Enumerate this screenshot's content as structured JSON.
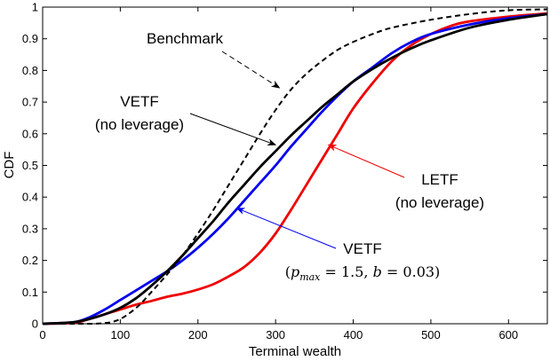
{
  "chart_data": {
    "type": "line",
    "title": "",
    "xlabel": "Terminal wealth",
    "ylabel": "CDF",
    "xlim": [
      0,
      650
    ],
    "ylim": [
      0,
      1
    ],
    "xticks": [
      0,
      100,
      200,
      300,
      400,
      500,
      600
    ],
    "yticks": [
      0,
      0.1,
      0.2,
      0.3,
      0.4,
      0.5,
      0.6,
      0.7,
      0.8,
      0.9,
      1
    ],
    "xtick_labels": [
      "0",
      "100",
      "200",
      "300",
      "400",
      "500",
      "600"
    ],
    "ytick_labels": [
      "0",
      "0.1",
      "0.2",
      "0.3",
      "0.4",
      "0.5",
      "0.6",
      "0.7",
      "0.8",
      "0.9",
      "1"
    ],
    "grid": false,
    "series": [
      {
        "name": "Benchmark",
        "color": "#000000",
        "dash": "dashed",
        "x": [
          0,
          60,
          80,
          90,
          100,
          110,
          125,
          140,
          160,
          180,
          200,
          220,
          240,
          260,
          280,
          300,
          320,
          340,
          360,
          380,
          400,
          425,
          450,
          500,
          550,
          600,
          650
        ],
        "y": [
          0,
          0,
          0.002,
          0.006,
          0.015,
          0.03,
          0.06,
          0.1,
          0.155,
          0.215,
          0.285,
          0.36,
          0.44,
          0.52,
          0.6,
          0.675,
          0.74,
          0.79,
          0.83,
          0.865,
          0.89,
          0.915,
          0.935,
          0.96,
          0.978,
          0.99,
          0.993
        ]
      },
      {
        "name": "VETF (no leverage)",
        "color": "#000000",
        "dash": "solid",
        "x": [
          0,
          40,
          60,
          80,
          100,
          120,
          140,
          160,
          180,
          200,
          220,
          240,
          260,
          280,
          300,
          320,
          340,
          360,
          380,
          400,
          425,
          450,
          475,
          500,
          550,
          600,
          650
        ],
        "y": [
          0,
          0.005,
          0.015,
          0.03,
          0.05,
          0.08,
          0.12,
          0.165,
          0.215,
          0.27,
          0.325,
          0.385,
          0.44,
          0.495,
          0.545,
          0.595,
          0.64,
          0.685,
          0.725,
          0.765,
          0.805,
          0.84,
          0.87,
          0.895,
          0.935,
          0.96,
          0.978
        ]
      },
      {
        "name": "VETF (p_max = 1.5, b = 0.03)",
        "color": "#0000ee",
        "dash": "solid",
        "x": [
          0,
          40,
          60,
          80,
          100,
          120,
          140,
          160,
          180,
          200,
          220,
          240,
          260,
          280,
          300,
          320,
          340,
          360,
          380,
          400,
          425,
          450,
          475,
          500,
          550,
          600,
          650
        ],
        "y": [
          0,
          0.005,
          0.02,
          0.045,
          0.075,
          0.105,
          0.135,
          0.165,
          0.2,
          0.24,
          0.285,
          0.335,
          0.39,
          0.445,
          0.5,
          0.56,
          0.615,
          0.67,
          0.72,
          0.765,
          0.81,
          0.855,
          0.89,
          0.915,
          0.945,
          0.965,
          0.978
        ]
      },
      {
        "name": "LETF (no leverage)",
        "color": "#ee0000",
        "dash": "solid",
        "x": [
          0,
          40,
          60,
          80,
          100,
          120,
          140,
          160,
          180,
          200,
          220,
          240,
          260,
          280,
          300,
          320,
          340,
          360,
          380,
          400,
          425,
          450,
          475,
          500,
          525,
          550,
          600,
          650
        ],
        "y": [
          0,
          0.003,
          0.015,
          0.03,
          0.045,
          0.06,
          0.072,
          0.085,
          0.095,
          0.108,
          0.125,
          0.15,
          0.18,
          0.225,
          0.285,
          0.36,
          0.44,
          0.52,
          0.6,
          0.68,
          0.76,
          0.83,
          0.88,
          0.915,
          0.94,
          0.955,
          0.97,
          0.98
        ]
      }
    ],
    "annotations": [
      {
        "id": "benchmark",
        "text": "Benchmark",
        "color": "#000000",
        "arrow_style": "dashed",
        "points_to": [
          305,
          0.745
        ]
      },
      {
        "id": "vetf",
        "lines": [
          "VETF",
          "(no leverage)"
        ],
        "color": "#000000",
        "arrow_style": "solid",
        "points_to": [
          300,
          0.565
        ]
      },
      {
        "id": "letf",
        "lines": [
          "LETF",
          "(no leverage)"
        ],
        "color": "#ee0000",
        "arrow_style": "solid",
        "points_to": [
          368,
          0.565
        ]
      },
      {
        "id": "vetf-lev",
        "lines": [
          "VETF"
        ],
        "math_parts": [
          "(",
          "p",
          "max",
          " = 1.5, ",
          "b",
          " = 0.03)"
        ],
        "color": "#0000ee",
        "arrow_style": "solid",
        "points_to": [
          250,
          0.365
        ]
      }
    ]
  }
}
